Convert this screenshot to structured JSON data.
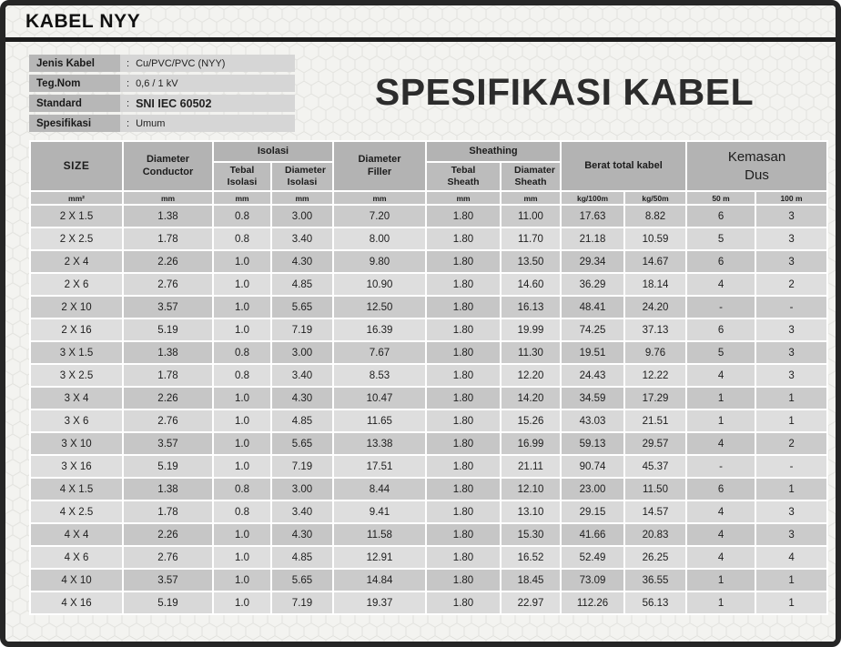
{
  "page": {
    "title": "KABEL NYY",
    "main_title": "SPESIFIKASI KABEL"
  },
  "info": {
    "colon": ":",
    "rows": [
      {
        "label": "Jenis Kabel",
        "value": "Cu/PVC/PVC (NYY)"
      },
      {
        "label": "Teg.Nom",
        "value": "0,6 / 1 kV"
      },
      {
        "label": "Standard",
        "value": "SNI IEC 60502"
      },
      {
        "label": "Spesifikasi",
        "value": "Umum"
      }
    ]
  },
  "table": {
    "header": {
      "size": "SIZE",
      "diameter_conductor": "Diameter Conductor",
      "isolasi": "Isolasi",
      "tebal_isolasi": "Tebal Isolasi",
      "diameter_isolasi": "Diameter Isolasi",
      "diameter_filler": "Diameter Filler",
      "sheathing": "Sheathing",
      "tebal_sheath": "Tebal Sheath",
      "diamater_sheath": "Diamater Sheath",
      "berat_total": "Berat total kabel",
      "kemasan_dus": "Kemasan Dus"
    },
    "units": [
      "mm²",
      "mm",
      "mm",
      "mm",
      "mm",
      "mm",
      "mm",
      "kg/100m",
      "kg/50m",
      "50 m",
      "100 m"
    ],
    "rows": [
      [
        "2 X 1.5",
        "1.38",
        "0.8",
        "3.00",
        "7.20",
        "1.80",
        "11.00",
        "17.63",
        "8.82",
        "6",
        "3"
      ],
      [
        "2 X 2.5",
        "1.78",
        "0.8",
        "3.40",
        "8.00",
        "1.80",
        "11.70",
        "21.18",
        "10.59",
        "5",
        "3"
      ],
      [
        "2 X 4",
        "2.26",
        "1.0",
        "4.30",
        "9.80",
        "1.80",
        "13.50",
        "29.34",
        "14.67",
        "6",
        "3"
      ],
      [
        "2 X 6",
        "2.76",
        "1.0",
        "4.85",
        "10.90",
        "1.80",
        "14.60",
        "36.29",
        "18.14",
        "4",
        "2"
      ],
      [
        "2 X 10",
        "3.57",
        "1.0",
        "5.65",
        "12.50",
        "1.80",
        "16.13",
        "48.41",
        "24.20",
        "-",
        "-"
      ],
      [
        "2 X 16",
        "5.19",
        "1.0",
        "7.19",
        "16.39",
        "1.80",
        "19.99",
        "74.25",
        "37.13",
        "6",
        "3"
      ],
      [
        "3 X 1.5",
        "1.38",
        "0.8",
        "3.00",
        "7.67",
        "1.80",
        "11.30",
        "19.51",
        "9.76",
        "5",
        "3"
      ],
      [
        "3 X 2.5",
        "1.78",
        "0.8",
        "3.40",
        "8.53",
        "1.80",
        "12.20",
        "24.43",
        "12.22",
        "4",
        "3"
      ],
      [
        "3 X 4",
        "2.26",
        "1.0",
        "4.30",
        "10.47",
        "1.80",
        "14.20",
        "34.59",
        "17.29",
        "1",
        "1"
      ],
      [
        "3 X 6",
        "2.76",
        "1.0",
        "4.85",
        "11.65",
        "1.80",
        "15.26",
        "43.03",
        "21.51",
        "1",
        "1"
      ],
      [
        "3 X 10",
        "3.57",
        "1.0",
        "5.65",
        "13.38",
        "1.80",
        "16.99",
        "59.13",
        "29.57",
        "4",
        "2"
      ],
      [
        "3 X 16",
        "5.19",
        "1.0",
        "7.19",
        "17.51",
        "1.80",
        "21.11",
        "90.74",
        "45.37",
        "-",
        "-"
      ],
      [
        "4 X 1.5",
        "1.38",
        "0.8",
        "3.00",
        "8.44",
        "1.80",
        "12.10",
        "23.00",
        "11.50",
        "6",
        "1"
      ],
      [
        "4 X 2.5",
        "1.78",
        "0.8",
        "3.40",
        "9.41",
        "1.80",
        "13.10",
        "29.15",
        "14.57",
        "4",
        "3"
      ],
      [
        "4 X 4",
        "2.26",
        "1.0",
        "4.30",
        "11.58",
        "1.80",
        "15.30",
        "41.66",
        "20.83",
        "4",
        "3"
      ],
      [
        "4 X 6",
        "2.76",
        "1.0",
        "4.85",
        "12.91",
        "1.80",
        "16.52",
        "52.49",
        "26.25",
        "4",
        "4"
      ],
      [
        "4 X 10",
        "3.57",
        "1.0",
        "5.65",
        "14.84",
        "1.80",
        "18.45",
        "73.09",
        "36.55",
        "1",
        "1"
      ],
      [
        "4 X 16",
        "5.19",
        "1.0",
        "7.19",
        "19.37",
        "1.80",
        "22.97",
        "112.26",
        "56.13",
        "1",
        "1"
      ]
    ]
  }
}
